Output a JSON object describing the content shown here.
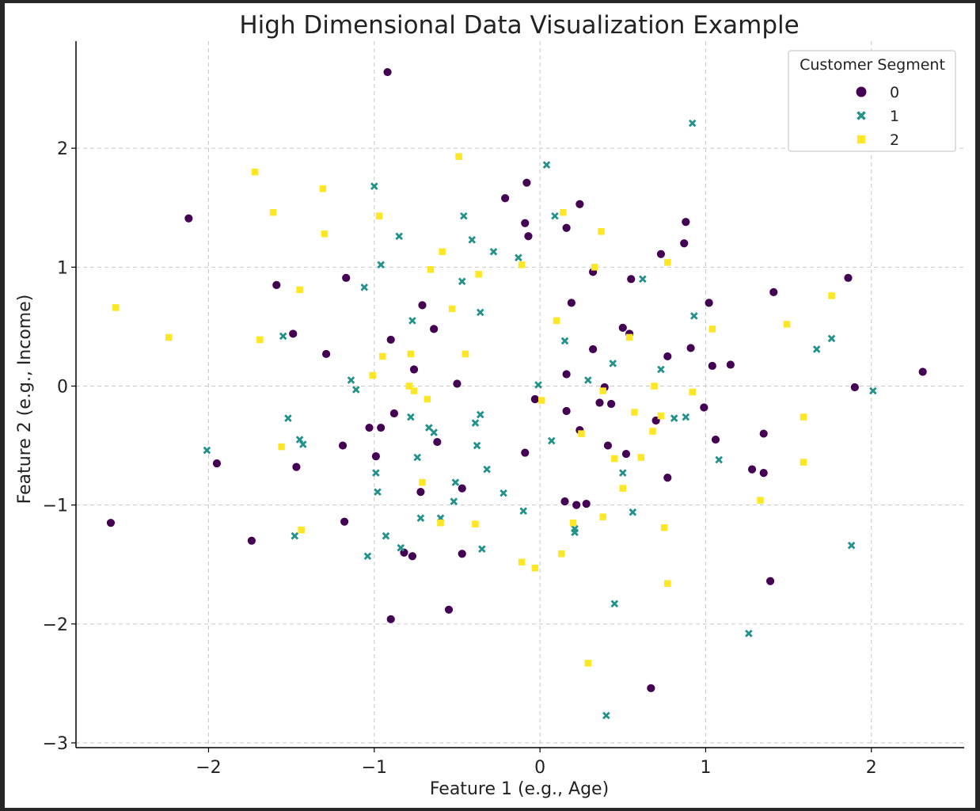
{
  "chart_data": {
    "type": "scatter",
    "title": "High Dimensional Data Visualization Example",
    "xlabel": "Feature 1 (e.g., Age)",
    "ylabel": "Feature 2 (e.g., Income)",
    "xlim": [
      -2.8,
      2.56
    ],
    "ylim": [
      -3.04,
      2.9
    ],
    "xticks": [
      -2,
      -1,
      0,
      1,
      2
    ],
    "yticks": [
      -3,
      -2,
      -1,
      0,
      1,
      2
    ],
    "xtick_labels": [
      "−2",
      "−1",
      "0",
      "1",
      "2"
    ],
    "ytick_labels": [
      "−3",
      "−2",
      "−1",
      "0",
      "1",
      "2"
    ],
    "grid": true,
    "legend": {
      "title": "Customer Segment",
      "position": "top-right",
      "entries": [
        {
          "label": "0",
          "marker": "circle",
          "color": "#440154"
        },
        {
          "label": "1",
          "marker": "x",
          "color": "#21918c"
        },
        {
          "label": "2",
          "marker": "square",
          "color": "#fde725"
        }
      ]
    },
    "series": [
      {
        "name": "0",
        "marker": "circle",
        "color": "#440154",
        "points": [
          [
            -0.92,
            2.64
          ],
          [
            -2.12,
            1.41
          ],
          [
            -0.21,
            1.58
          ],
          [
            -0.08,
            1.71
          ],
          [
            0.24,
            1.53
          ],
          [
            -0.09,
            1.37
          ],
          [
            0.16,
            1.33
          ],
          [
            -0.07,
            1.26
          ],
          [
            0.88,
            1.38
          ],
          [
            0.73,
            1.11
          ],
          [
            0.87,
            1.2
          ],
          [
            -1.59,
            0.85
          ],
          [
            -1.17,
            0.91
          ],
          [
            0.32,
            0.96
          ],
          [
            0.55,
            0.9
          ],
          [
            1.86,
            0.91
          ],
          [
            1.41,
            0.79
          ],
          [
            -0.71,
            0.68
          ],
          [
            0.19,
            0.7
          ],
          [
            1.02,
            0.7
          ],
          [
            -1.49,
            0.44
          ],
          [
            -0.9,
            0.39
          ],
          [
            -0.64,
            0.48
          ],
          [
            0.5,
            0.49
          ],
          [
            0.54,
            0.44
          ],
          [
            -1.29,
            0.27
          ],
          [
            0.32,
            0.31
          ],
          [
            0.77,
            0.25
          ],
          [
            0.91,
            0.32
          ],
          [
            -0.76,
            0.14
          ],
          [
            1.04,
            0.17
          ],
          [
            1.15,
            0.18
          ],
          [
            0.16,
            0.1
          ],
          [
            2.31,
            0.12
          ],
          [
            -0.5,
            0.02
          ],
          [
            0.39,
            -0.01
          ],
          [
            1.9,
            -0.01
          ],
          [
            -0.03,
            -0.11
          ],
          [
            0.36,
            -0.14
          ],
          [
            0.43,
            -0.15
          ],
          [
            -0.88,
            -0.23
          ],
          [
            0.16,
            -0.21
          ],
          [
            0.99,
            -0.18
          ],
          [
            -1.03,
            -0.35
          ],
          [
            -0.96,
            -0.35
          ],
          [
            0.24,
            -0.37
          ],
          [
            0.7,
            -0.29
          ],
          [
            -0.62,
            -0.47
          ],
          [
            1.35,
            -0.4
          ],
          [
            -1.19,
            -0.5
          ],
          [
            1.06,
            -0.45
          ],
          [
            -1.95,
            -0.65
          ],
          [
            -0.99,
            -0.59
          ],
          [
            -0.09,
            -0.56
          ],
          [
            0.41,
            -0.5
          ],
          [
            0.52,
            -0.57
          ],
          [
            -1.47,
            -0.68
          ],
          [
            1.28,
            -0.7
          ],
          [
            1.35,
            -0.73
          ],
          [
            0.77,
            -0.77
          ],
          [
            -0.72,
            -0.89
          ],
          [
            -0.47,
            -0.86
          ],
          [
            0.15,
            -0.97
          ],
          [
            0.22,
            -1.0
          ],
          [
            0.28,
            -0.99
          ],
          [
            -2.59,
            -1.15
          ],
          [
            -1.18,
            -1.14
          ],
          [
            -1.74,
            -1.3
          ],
          [
            -0.82,
            -1.4
          ],
          [
            -0.77,
            -1.43
          ],
          [
            -0.47,
            -1.41
          ],
          [
            1.39,
            -1.64
          ],
          [
            -0.9,
            -1.96
          ],
          [
            -0.55,
            -1.88
          ],
          [
            0.67,
            -2.54
          ]
        ]
      },
      {
        "name": "1",
        "marker": "x",
        "color": "#21918c",
        "points": [
          [
            0.92,
            2.21
          ],
          [
            0.04,
            1.86
          ],
          [
            -1.0,
            1.68
          ],
          [
            -0.46,
            1.43
          ],
          [
            0.09,
            1.43
          ],
          [
            -0.85,
            1.26
          ],
          [
            -0.41,
            1.23
          ],
          [
            -0.28,
            1.13
          ],
          [
            -0.13,
            1.08
          ],
          [
            -0.96,
            1.02
          ],
          [
            0.62,
            0.9
          ],
          [
            -0.47,
            0.88
          ],
          [
            -1.06,
            0.83
          ],
          [
            -0.36,
            0.62
          ],
          [
            0.93,
            0.59
          ],
          [
            -0.77,
            0.55
          ],
          [
            -1.55,
            0.42
          ],
          [
            1.76,
            0.4
          ],
          [
            0.15,
            0.38
          ],
          [
            1.67,
            0.31
          ],
          [
            0.44,
            0.19
          ],
          [
            0.73,
            0.14
          ],
          [
            -1.14,
            0.05
          ],
          [
            0.29,
            0.05
          ],
          [
            -1.11,
            -0.03
          ],
          [
            -0.01,
            0.01
          ],
          [
            2.01,
            -0.04
          ],
          [
            -0.36,
            -0.24
          ],
          [
            -0.78,
            -0.26
          ],
          [
            0.81,
            -0.27
          ],
          [
            0.88,
            -0.26
          ],
          [
            -1.52,
            -0.27
          ],
          [
            -0.39,
            -0.31
          ],
          [
            -0.67,
            -0.35
          ],
          [
            -0.64,
            -0.39
          ],
          [
            -1.45,
            -0.45
          ],
          [
            -1.43,
            -0.49
          ],
          [
            0.07,
            -0.46
          ],
          [
            -0.38,
            -0.5
          ],
          [
            -2.01,
            -0.54
          ],
          [
            -0.74,
            -0.6
          ],
          [
            1.08,
            -0.62
          ],
          [
            -0.32,
            -0.7
          ],
          [
            -0.99,
            -0.73
          ],
          [
            0.5,
            -0.73
          ],
          [
            -0.51,
            -0.81
          ],
          [
            -0.98,
            -0.89
          ],
          [
            -0.22,
            -0.9
          ],
          [
            -0.52,
            -0.97
          ],
          [
            -0.1,
            -1.05
          ],
          [
            0.56,
            -1.06
          ],
          [
            -0.72,
            -1.11
          ],
          [
            -0.6,
            -1.11
          ],
          [
            0.21,
            -1.2
          ],
          [
            0.21,
            -1.23
          ],
          [
            -1.48,
            -1.26
          ],
          [
            -0.93,
            -1.26
          ],
          [
            1.88,
            -1.34
          ],
          [
            -0.84,
            -1.36
          ],
          [
            -0.35,
            -1.37
          ],
          [
            -1.04,
            -1.43
          ],
          [
            0.45,
            -1.83
          ],
          [
            1.26,
            -2.08
          ],
          [
            0.4,
            -2.77
          ]
        ]
      },
      {
        "name": "2",
        "marker": "square",
        "color": "#fde725",
        "points": [
          [
            -0.49,
            1.93
          ],
          [
            -1.72,
            1.8
          ],
          [
            -1.31,
            1.66
          ],
          [
            -1.61,
            1.46
          ],
          [
            0.14,
            1.46
          ],
          [
            -0.97,
            1.43
          ],
          [
            0.37,
            1.3
          ],
          [
            -1.3,
            1.28
          ],
          [
            -0.59,
            1.13
          ],
          [
            0.77,
            1.04
          ],
          [
            -0.11,
            1.02
          ],
          [
            0.33,
            1.0
          ],
          [
            -0.66,
            0.98
          ],
          [
            -0.37,
            0.94
          ],
          [
            -1.45,
            0.81
          ],
          [
            1.76,
            0.76
          ],
          [
            -2.56,
            0.66
          ],
          [
            -0.53,
            0.65
          ],
          [
            0.1,
            0.55
          ],
          [
            1.49,
            0.52
          ],
          [
            1.04,
            0.48
          ],
          [
            0.54,
            0.41
          ],
          [
            -2.24,
            0.41
          ],
          [
            -1.69,
            0.39
          ],
          [
            -0.45,
            0.27
          ],
          [
            -0.78,
            0.27
          ],
          [
            -0.95,
            0.25
          ],
          [
            -1.01,
            0.09
          ],
          [
            0.69,
            0.0
          ],
          [
            -0.79,
            0.0
          ],
          [
            -0.76,
            -0.04
          ],
          [
            0.38,
            -0.04
          ],
          [
            0.92,
            -0.05
          ],
          [
            -0.68,
            -0.11
          ],
          [
            0.01,
            -0.12
          ],
          [
            0.57,
            -0.22
          ],
          [
            0.73,
            -0.25
          ],
          [
            1.59,
            -0.26
          ],
          [
            0.68,
            -0.38
          ],
          [
            0.25,
            -0.4
          ],
          [
            -1.56,
            -0.51
          ],
          [
            0.45,
            -0.61
          ],
          [
            0.61,
            -0.6
          ],
          [
            1.59,
            -0.64
          ],
          [
            -0.71,
            -0.81
          ],
          [
            0.5,
            -0.86
          ],
          [
            1.33,
            -0.96
          ],
          [
            0.38,
            -1.1
          ],
          [
            -0.6,
            -1.15
          ],
          [
            -0.39,
            -1.16
          ],
          [
            0.2,
            -1.15
          ],
          [
            0.75,
            -1.19
          ],
          [
            -1.44,
            -1.21
          ],
          [
            0.13,
            -1.41
          ],
          [
            -0.11,
            -1.48
          ],
          [
            -0.03,
            -1.53
          ],
          [
            0.77,
            -1.66
          ],
          [
            0.29,
            -2.33
          ]
        ]
      }
    ]
  }
}
